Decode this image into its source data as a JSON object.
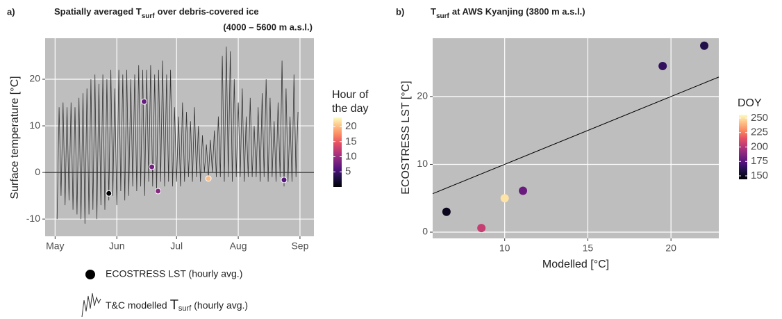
{
  "chart_data": [
    {
      "type": "line",
      "panel_label": "a)",
      "title": [
        "Spatially averaged T",
        "surf",
        "over debris-covered ice"
      ],
      "subtitle": "(4000 – 5600 m a.s.l.)",
      "y_label": "Surface temperature  [°C]",
      "xlim": [
        116,
        251
      ],
      "ylim": [
        -13.7,
        28.8
      ],
      "xticks": [
        {
          "value": 121,
          "label": "May"
        },
        {
          "value": 152,
          "label": "Jun"
        },
        {
          "value": 182,
          "label": "Jul"
        },
        {
          "value": 213,
          "label": "Aug"
        },
        {
          "value": 244,
          "label": "Sep"
        }
      ],
      "yticks": [
        -10,
        0,
        10,
        20
      ],
      "hline": 0,
      "grid": true,
      "colormap": "magma",
      "series": [
        {
          "name": [
            "T&C modelled",
            "T",
            "surf",
            "(hourly avg.)"
          ],
          "color": "#333333",
          "x": [
            122,
            123,
            124,
            125,
            126,
            127,
            128,
            129,
            130,
            131,
            132,
            133,
            134,
            135,
            136,
            137,
            138,
            139,
            140,
            141,
            142,
            143,
            144,
            145,
            146,
            147,
            148,
            149,
            150,
            151,
            152,
            153,
            154,
            155,
            156,
            157,
            158,
            159,
            160,
            161,
            162,
            163,
            164,
            165,
            166,
            167,
            168,
            169,
            170,
            171,
            172,
            173,
            174,
            175,
            176,
            177,
            178,
            179,
            180,
            181,
            182,
            183,
            184,
            185,
            186,
            187,
            188,
            189,
            190,
            191,
            192,
            193,
            194,
            195,
            196,
            197,
            198,
            199,
            200,
            201,
            202,
            203,
            204,
            205,
            206,
            207,
            208,
            209,
            210,
            211,
            212,
            213,
            214,
            215,
            216,
            217,
            218,
            219,
            220,
            221,
            222,
            223,
            224,
            225,
            226,
            227,
            228,
            229,
            230,
            231,
            232,
            233,
            234,
            235,
            236,
            237,
            238,
            239,
            240,
            241,
            242,
            243
          ],
          "values": [
            -10,
            14,
            -5,
            15,
            -7,
            14,
            -6,
            15,
            -8,
            14,
            -9,
            16,
            -10,
            17,
            -11,
            18,
            -9,
            20,
            -8,
            21,
            -10,
            19,
            -7,
            21,
            -8,
            20,
            -6,
            22,
            -5,
            18,
            -7,
            22,
            -4,
            21,
            -6,
            22,
            -5,
            20,
            -3,
            21,
            -4,
            23,
            -3,
            22,
            -5,
            22,
            -2,
            23,
            -3,
            21,
            -4,
            22,
            -2,
            24,
            -3,
            21,
            -2,
            22,
            -3,
            14,
            -2,
            12,
            -3,
            15,
            -2,
            13,
            -1,
            11,
            -2,
            14,
            -1,
            10,
            -2,
            8,
            0,
            6,
            -1,
            7,
            0,
            9,
            -1,
            12,
            -1,
            25,
            -2,
            27,
            -1,
            26,
            -2,
            20,
            -1,
            15,
            -1,
            18,
            -2,
            12,
            -1,
            16,
            -1,
            10,
            -1,
            14,
            -2,
            17,
            -1,
            20,
            -2,
            16,
            -1,
            11,
            -2,
            15,
            -1,
            24,
            -3,
            18,
            -2,
            12,
            -2,
            21,
            -1,
            13
          ]
        },
        {
          "name": "ECOSTRESS LST (hourly avg.)",
          "type": "scatter",
          "x": [
            148,
            165.7,
            169.6,
            172.7,
            198,
            236
          ],
          "values": [
            -4.5,
            15.2,
            1.2,
            -4,
            -1.3,
            -1.6
          ],
          "hour": [
            0,
            7,
            8,
            9,
            20,
            6
          ]
        }
      ],
      "colorbar": {
        "title": [
          "Hour of",
          "the day"
        ],
        "lim": [
          0,
          23
        ],
        "ticks": [
          5,
          10,
          15,
          20
        ]
      }
    },
    {
      "type": "scatter",
      "panel_label": "b)",
      "title": [
        "T",
        "surf",
        "at AWS Kyanjing (3800 m a.s.l.)"
      ],
      "x_label": "Modelled  [°C]",
      "y_label": "ECOSTRESS LST  [°C]",
      "xlim": [
        5.67,
        22.875
      ],
      "ylim": [
        -0.92,
        28.6
      ],
      "xticks": [
        10,
        15,
        20
      ],
      "yticks": [
        0,
        10,
        20
      ],
      "grid": true,
      "colormap": "magma",
      "x": [
        6.5,
        8.6,
        10,
        11.1,
        19.5,
        22
      ],
      "values": [
        3.0,
        0.6,
        5.0,
        6.1,
        24.5,
        27.5
      ],
      "doy": [
        150,
        205,
        250,
        180,
        165,
        160
      ],
      "colorbar": {
        "title": "DOY",
        "lim": [
          144,
          256
        ],
        "ticks": [
          150,
          175,
          200,
          225,
          250
        ]
      }
    }
  ]
}
